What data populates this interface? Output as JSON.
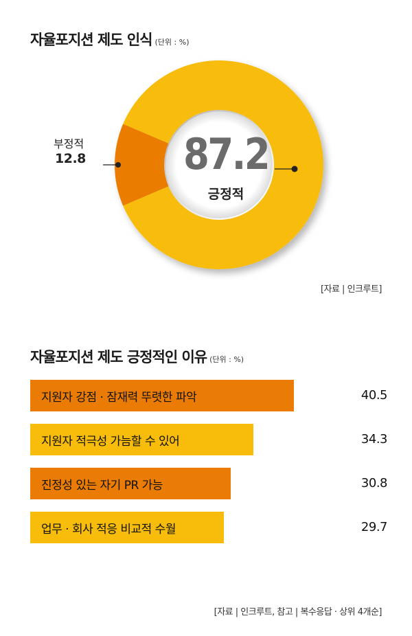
{
  "chart1": {
    "title": "자율포지션 제도 인식",
    "unit": "(단위 : %)",
    "source": "[자료 | 인크루트]"
  },
  "chart2": {
    "title": "자율포지션 제도 긍정적인 이유",
    "unit": "(단위 : %)",
    "source": "[자료 | 인크루트, 참고 | 복수응답 · 상위 4개순]"
  },
  "colors": {
    "orange": "#EA7C06",
    "yellow": "#F8BC0A",
    "gray_text": "#6b6b6b"
  },
  "chart_data": [
    {
      "type": "pie",
      "categories": [
        "긍정적",
        "부정적"
      ],
      "values": [
        87.2,
        12.8
      ],
      "colors": [
        "#F8BC0A",
        "#EA7C06"
      ],
      "labels": {
        "positive_value": "87.2",
        "positive_label": "긍정적",
        "negative_value": "12.8",
        "negative_label": "부정적"
      }
    },
    {
      "type": "bar",
      "orientation": "horizontal",
      "categories": [
        "지원자 강점 · 잠재력 뚜렷한 파악",
        "지원자 적극성 가늠할 수 있어",
        "진정성 있는 자기 PR 가능",
        "업무 · 회사 적응 비교적 수월"
      ],
      "values": [
        40.5,
        34.3,
        30.8,
        29.7
      ],
      "value_labels": [
        "40.5",
        "34.3",
        "30.8",
        "29.7"
      ],
      "colors": [
        "#EA7C06",
        "#F8BC0A",
        "#EA7C06",
        "#F8BC0A"
      ]
    }
  ]
}
